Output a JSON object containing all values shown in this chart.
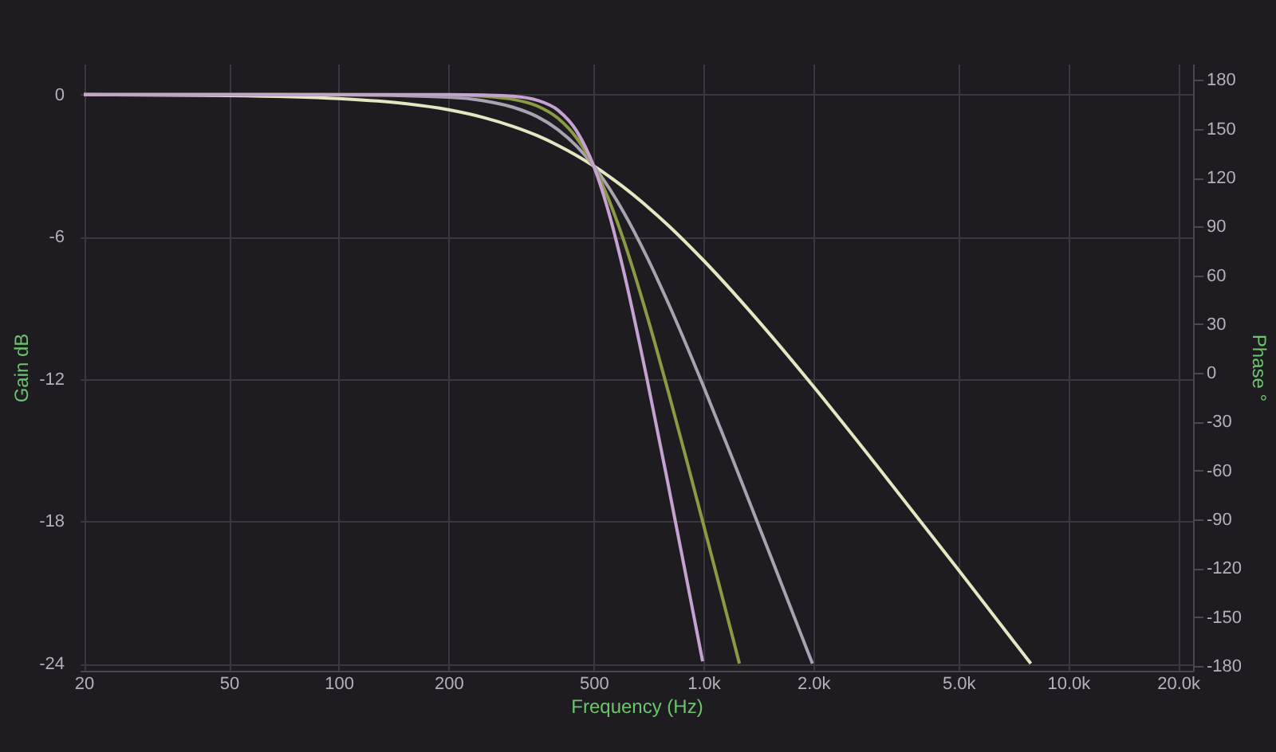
{
  "chart_data": {
    "type": "line",
    "xlabel": "Frequency (Hz)",
    "ylabel": "Gain dB",
    "y2label": "Phase °",
    "log": "x",
    "grid": true,
    "marker": "none",
    "line_style": "solid",
    "xlim": [
      19.5,
      22000
    ],
    "xticks": [
      20,
      50,
      100,
      200,
      500,
      {
        "value": 1000,
        "label": "1.0k"
      },
      {
        "value": 2000,
        "label": "2.0k"
      },
      {
        "value": 5000,
        "label": "5.0k"
      },
      {
        "value": 10000,
        "label": "10.0k"
      },
      {
        "value": 20000,
        "label": "20.0k"
      }
    ],
    "ylim": [
      -24.3,
      1.3
    ],
    "yticks": [
      0,
      -6,
      -12,
      -18,
      -24
    ],
    "y2lim": [
      -183,
      190
    ],
    "y2ticks": [
      180,
      150,
      120,
      90,
      60,
      30,
      0,
      -30,
      -60,
      -90,
      -120,
      -150,
      -180
    ],
    "series": [
      {
        "color": "#e6e6c2",
        "x": [
          20,
          50,
          100,
          150,
          200,
          250,
          300,
          350,
          400,
          450,
          500,
          600,
          700,
          800,
          1000,
          1500,
          2000,
          3000,
          5000,
          7900
        ],
        "values": [
          0,
          -0.04,
          -0.17,
          -0.37,
          -0.64,
          -0.97,
          -1.34,
          -1.73,
          -2.15,
          -2.58,
          -3.01,
          -3.87,
          -4.71,
          -5.51,
          -6.99,
          -10,
          -12.3,
          -15.68,
          -20.04,
          -24
        ]
      },
      {
        "color": "#a8a2b2",
        "x": [
          20,
          50,
          100,
          200,
          250,
          300,
          350,
          400,
          450,
          500,
          550,
          600,
          700,
          800,
          1000,
          1200,
          1500,
          1800,
          1990
        ],
        "values": [
          0,
          0,
          -0.01,
          -0.11,
          -0.26,
          -0.53,
          -0.93,
          -1.49,
          -2.19,
          -3.01,
          -3.92,
          -4.88,
          -6.85,
          -8.78,
          -12.3,
          -15.34,
          -19.14,
          -22.28,
          -24
        ]
      },
      {
        "color": "#8c9a44",
        "x": [
          20,
          100,
          200,
          250,
          300,
          350,
          400,
          450,
          500,
          550,
          600,
          700,
          800,
          900,
          1000,
          1100,
          1200,
          1255
        ],
        "values": [
          0,
          0,
          -0.02,
          -0.07,
          -0.2,
          -0.48,
          -1.01,
          -1.85,
          -3.01,
          -4.43,
          -6,
          -9.31,
          -12.5,
          -15.44,
          -18.13,
          -20.58,
          -22.83,
          -24
        ]
      },
      {
        "color": "#c6a2d2",
        "x": [
          20,
          100,
          200,
          250,
          300,
          350,
          400,
          450,
          500,
          550,
          600,
          700,
          800,
          900,
          995
        ],
        "values": [
          0,
          0,
          0,
          -0.02,
          -0.07,
          -0.24,
          -0.67,
          -1.56,
          -3.01,
          -4.97,
          -7.24,
          -11.98,
          -16.43,
          -20.46,
          -23.9
        ]
      }
    ]
  }
}
